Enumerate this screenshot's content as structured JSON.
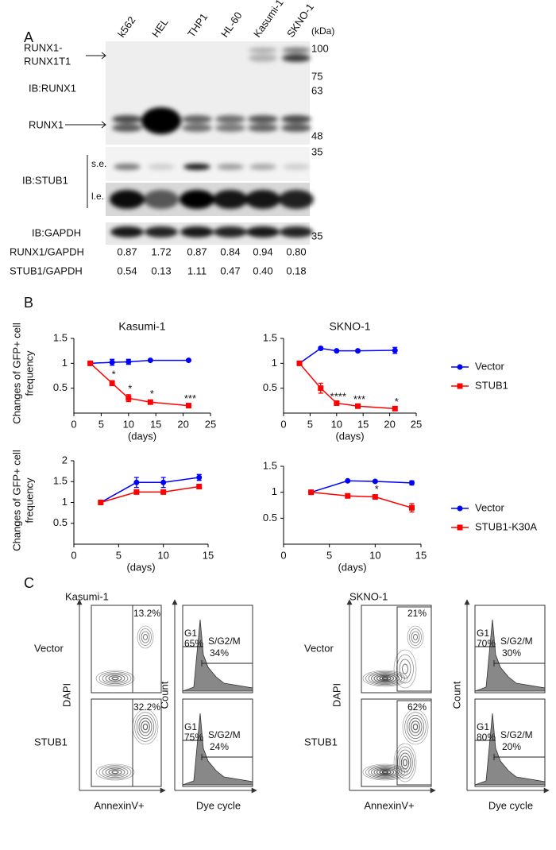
{
  "panel_labels": [
    "A",
    "B",
    "C"
  ],
  "panel_a": {
    "lanes": [
      "k562",
      "HEL",
      "THP1",
      "HL-60",
      "Kasumi-1",
      "SKNO-1"
    ],
    "kda_unit": "(kDa)",
    "markers": [
      100,
      75,
      63,
      48,
      35,
      35
    ],
    "labels": {
      "runx1_runx1t1": [
        "RUNX1-",
        "RUNX1T1"
      ],
      "ib_runx1": "IB:RUNX1",
      "runx1": "RUNX1",
      "ib_stub1": "IB:STUB1",
      "se": "s.e.",
      "le": "l.e.",
      "ib_gapdh": "IB:GAPDH"
    },
    "ratios": [
      {
        "name": "RUNX1/GAPDH",
        "values": [
          "0.87",
          "1.72",
          "0.87",
          "0.84",
          "0.94",
          "0.80"
        ]
      },
      {
        "name": "STUB1/GAPDH",
        "values": [
          "0.54",
          "0.13",
          "1.11",
          "0.47",
          "0.40",
          "0.18"
        ]
      }
    ]
  },
  "chart_data": [
    {
      "type": "line",
      "title": "Kasumi-1",
      "y_label": [
        "Changes of GFP+ cell",
        "frequency"
      ],
      "x_label": "(days)",
      "xlim": [
        0,
        25
      ],
      "xticks": [
        0,
        5,
        10,
        15,
        20,
        25
      ],
      "ylim": [
        0,
        1.5
      ],
      "yticks": [
        0.5,
        1,
        1.5
      ],
      "x": [
        3,
        7,
        10,
        14,
        21
      ],
      "series": [
        {
          "color": "#0000ff",
          "marker": "circle",
          "values": [
            1,
            1.02,
            1.03,
            1.06,
            1.06
          ],
          "errors": [
            0,
            0.06,
            0.05,
            0,
            0
          ]
        },
        {
          "color": "#ff0000",
          "marker": "square",
          "values": [
            1,
            0.6,
            0.3,
            0.22,
            0.15
          ],
          "errors": [
            0,
            0.05,
            0.07,
            0.04,
            0.02
          ],
          "labels": [
            null,
            "*",
            "*",
            "*",
            "***"
          ]
        }
      ]
    },
    {
      "type": "line",
      "title": "SKNO-1",
      "x_label": "(days)",
      "xlim": [
        0,
        25
      ],
      "xticks": [
        0,
        5,
        10,
        15,
        20,
        25
      ],
      "ylim": [
        0,
        1.5
      ],
      "yticks": [
        0.5,
        1,
        1.5
      ],
      "x": [
        3,
        7,
        10,
        14,
        21
      ],
      "series": [
        {
          "name": "Vector",
          "color": "#0000ff",
          "marker": "circle",
          "values": [
            1,
            1.3,
            1.25,
            1.25,
            1.26
          ],
          "errors": [
            0,
            0.03,
            0.02,
            0.02,
            0.06
          ]
        },
        {
          "name": "STUB1",
          "color": "#ff0000",
          "marker": "square",
          "values": [
            1,
            0.5,
            0.2,
            0.14,
            0.09
          ],
          "errors": [
            0,
            0.1,
            0.01,
            0.01,
            0.01
          ],
          "labels": [
            null,
            null,
            "****",
            "***",
            "*"
          ]
        }
      ],
      "legend": "right"
    },
    {
      "type": "line",
      "y_label": [
        "Changes of GFP+ cell",
        "frequency"
      ],
      "x_label": "(days)",
      "xlim": [
        0,
        15
      ],
      "xticks": [
        0,
        5,
        10,
        15
      ],
      "ylim": [
        0,
        2
      ],
      "yticks": [
        0.5,
        1,
        1.5,
        2
      ],
      "x": [
        3,
        7,
        10,
        14
      ],
      "series": [
        {
          "color": "#0000ff",
          "marker": "circle",
          "values": [
            1,
            1.48,
            1.48,
            1.6
          ],
          "errors": [
            0,
            0.12,
            0.12,
            0.07
          ]
        },
        {
          "color": "#ff0000",
          "marker": "square",
          "values": [
            1,
            1.25,
            1.25,
            1.38
          ],
          "errors": [
            0,
            0.02,
            0.03,
            0.05
          ]
        }
      ]
    },
    {
      "type": "line",
      "x_label": "(days)",
      "xlim": [
        0,
        15
      ],
      "xticks": [
        0,
        5,
        10,
        15
      ],
      "ylim": [
        0,
        1.5
      ],
      "yticks": [
        0.5,
        1,
        1.5
      ],
      "x": [
        3,
        7,
        10,
        14
      ],
      "series": [
        {
          "name": "Vector",
          "color": "#0000ff",
          "marker": "circle",
          "values": [
            1,
            1.22,
            1.21,
            1.18
          ],
          "errors": [
            0,
            0.01,
            0.02,
            0.04
          ]
        },
        {
          "name": "STUB1-K30A",
          "color": "#ff0000",
          "marker": "square",
          "values": [
            1,
            0.93,
            0.91,
            0.7
          ],
          "errors": [
            0,
            0.02,
            0.03,
            0.08
          ],
          "labels": [
            null,
            null,
            "*",
            null
          ]
        }
      ],
      "legend": "right"
    }
  ],
  "panel_c": {
    "labels": {
      "dapi": "DAPI",
      "annexin": "AnnexinV+",
      "count": "Count",
      "dye": "Dye cycle",
      "g1": "G1",
      "sg2m": "S/G2/M"
    },
    "groups": [
      {
        "cell_line": "Kasumi-1",
        "rows": [
          {
            "name": "Vector",
            "apoptosis": "13.2%",
            "g1": "65%",
            "sg2m": "34%"
          },
          {
            "name": "STUB1",
            "apoptosis": "32.2%",
            "g1": "75%",
            "sg2m": "24%"
          }
        ]
      },
      {
        "cell_line": "SKNO-1",
        "rows": [
          {
            "name": "Vector",
            "apoptosis": "21%",
            "g1": "70%",
            "sg2m": "30%"
          },
          {
            "name": "STUB1",
            "apoptosis": "62%",
            "g1": "80%",
            "sg2m": "20%"
          }
        ]
      }
    ]
  }
}
